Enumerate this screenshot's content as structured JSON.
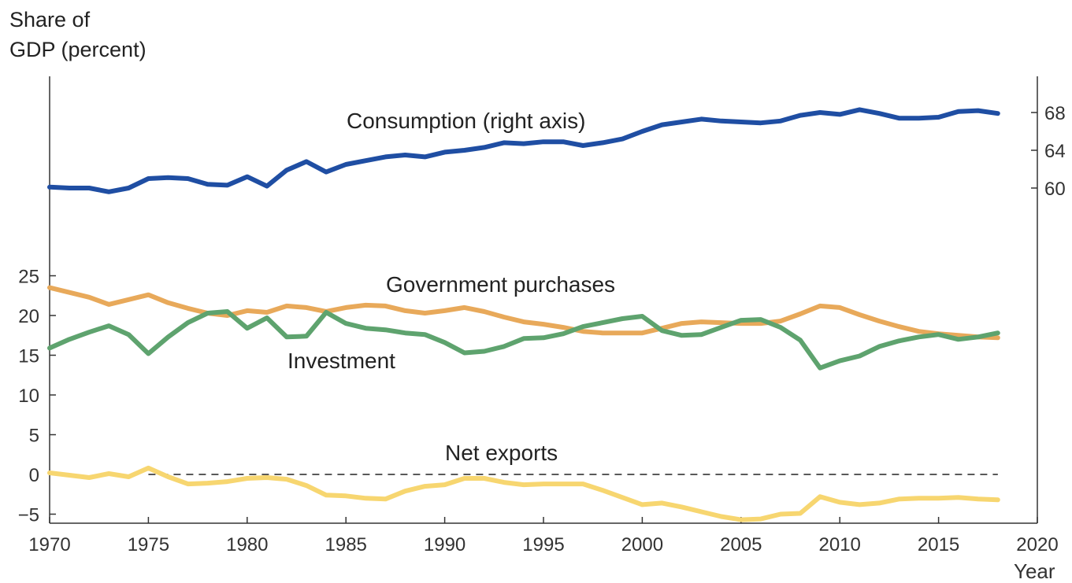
{
  "chart_data": {
    "type": "line",
    "ylabel_left": [
      "Share of",
      "GDP (percent)"
    ],
    "xlabel": "Year",
    "x_ticks": [
      1970,
      1975,
      1980,
      1985,
      1990,
      1995,
      2000,
      2005,
      2010,
      2015,
      2020
    ],
    "xlim": [
      1970,
      2020
    ],
    "left_axis": {
      "ticks": [
        25,
        20,
        15,
        10,
        5,
        0,
        -5
      ],
      "range": [
        -6,
        26
      ]
    },
    "right_axis": {
      "ticks": [
        60,
        64,
        68
      ],
      "range": [
        55,
        70
      ]
    },
    "zero_line": true,
    "grid": false,
    "x": [
      1970,
      1971,
      1972,
      1973,
      1974,
      1975,
      1976,
      1977,
      1978,
      1979,
      1980,
      1981,
      1982,
      1983,
      1984,
      1985,
      1986,
      1987,
      1988,
      1989,
      1990,
      1991,
      1992,
      1993,
      1994,
      1995,
      1996,
      1997,
      1998,
      1999,
      2000,
      2001,
      2002,
      2003,
      2004,
      2005,
      2006,
      2007,
      2008,
      2009,
      2010,
      2011,
      2012,
      2013,
      2014,
      2015,
      2016,
      2017,
      2018
    ],
    "series": [
      {
        "name": "Consumption (right axis)",
        "axis": "right",
        "color": "#1f4ea3",
        "values": [
          60.1,
          60.0,
          60.0,
          59.6,
          60.0,
          61.0,
          61.1,
          61.0,
          60.4,
          60.3,
          61.2,
          60.2,
          61.9,
          62.8,
          61.7,
          62.5,
          62.9,
          63.3,
          63.5,
          63.3,
          63.8,
          64.0,
          64.3,
          64.8,
          64.7,
          64.9,
          64.9,
          64.5,
          64.8,
          65.2,
          66.0,
          66.7,
          67.0,
          67.3,
          67.1,
          67.0,
          66.9,
          67.1,
          67.7,
          68.0,
          67.8,
          68.3,
          67.9,
          67.4,
          67.4,
          67.5,
          68.1,
          68.2,
          67.9
        ]
      },
      {
        "name": "Government purchases",
        "axis": "left",
        "color": "#e8a95a",
        "values": [
          23.5,
          22.9,
          22.3,
          21.4,
          22.0,
          22.6,
          21.6,
          20.9,
          20.3,
          20.0,
          20.6,
          20.4,
          21.2,
          21.0,
          20.5,
          21.0,
          21.3,
          21.2,
          20.6,
          20.3,
          20.6,
          21.0,
          20.5,
          19.8,
          19.2,
          18.9,
          18.5,
          18.0,
          17.8,
          17.8,
          17.8,
          18.4,
          19.0,
          19.2,
          19.1,
          19.0,
          19.0,
          19.3,
          20.2,
          21.2,
          21.0,
          20.1,
          19.3,
          18.6,
          18.0,
          17.7,
          17.5,
          17.3,
          17.2
        ]
      },
      {
        "name": "Investment",
        "axis": "left",
        "color": "#5ea36e",
        "values": [
          15.9,
          17.0,
          17.9,
          18.7,
          17.6,
          15.2,
          17.3,
          19.1,
          20.3,
          20.5,
          18.4,
          19.7,
          17.3,
          17.4,
          20.4,
          19.0,
          18.4,
          18.2,
          17.8,
          17.6,
          16.6,
          15.3,
          15.5,
          16.1,
          17.1,
          17.2,
          17.7,
          18.6,
          19.1,
          19.6,
          19.9,
          18.1,
          17.5,
          17.6,
          18.5,
          19.4,
          19.5,
          18.5,
          16.9,
          13.4,
          14.3,
          14.9,
          16.1,
          16.8,
          17.3,
          17.6,
          17.0,
          17.3,
          17.8
        ]
      },
      {
        "name": "Net exports",
        "axis": "left",
        "color": "#f7d670",
        "values": [
          0.2,
          -0.1,
          -0.4,
          0.1,
          -0.3,
          0.8,
          -0.3,
          -1.2,
          -1.1,
          -0.9,
          -0.5,
          -0.4,
          -0.6,
          -1.4,
          -2.6,
          -2.7,
          -3.0,
          -3.1,
          -2.1,
          -1.5,
          -1.3,
          -0.5,
          -0.5,
          -1.0,
          -1.3,
          -1.2,
          -1.2,
          -1.2,
          -2.0,
          -2.9,
          -3.8,
          -3.6,
          -4.1,
          -4.7,
          -5.3,
          -5.7,
          -5.6,
          -5.0,
          -4.9,
          -2.8,
          -3.5,
          -3.8,
          -3.6,
          -3.1,
          -3.0,
          -3.0,
          -2.9,
          -3.1,
          -3.2
        ]
      }
    ],
    "labels": {
      "consumption": "Consumption (right axis)",
      "government": "Government purchases",
      "investment": "Investment",
      "net_exports": "Net exports"
    }
  }
}
